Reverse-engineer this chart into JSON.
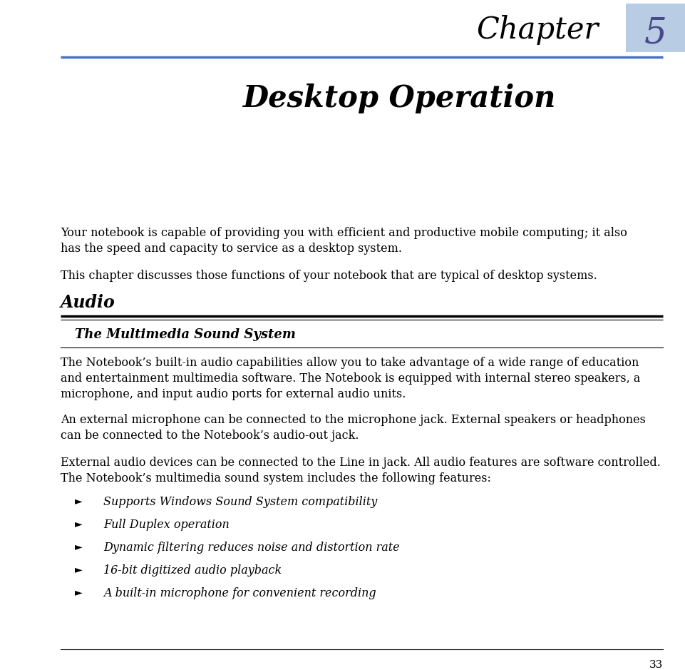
{
  "bg_color": "#ffffff",
  "chapter_text": "Chapter",
  "chapter_num": "5",
  "box_color": "#b8cce4",
  "line_color": "#4472c4",
  "title": "Desktop Operation",
  "page_number": "33",
  "para1_line1": "Your notebook is capable of providing you with efficient and productive mobile computing; it also",
  "para1_line2": "has the speed and capacity to service as a desktop system.",
  "para2": "This chapter discusses those functions of your notebook that are typical of desktop systems.",
  "section_heading": "Audio",
  "subsection_heading": "The Multimedia Sound System",
  "para3_line1": "The Notebook’s built-in audio capabilities allow you to take advantage of a wide range of education",
  "para3_line2": "and entertainment multimedia software. The Notebook is equipped with internal stereo speakers, a",
  "para3_line3": "microphone, and input audio ports for external audio units.",
  "para4_line1": "An external microphone can be connected to the microphone jack. External speakers or headphones",
  "para4_line2": "can be connected to the Notebook’s audio-out jack.",
  "para5_line1": "External audio devices can be connected to the Line in jack. All audio features are software controlled.",
  "para5_line2": "The Notebook’s multimedia sound system includes the following features:",
  "bullets": [
    "Supports Windows Sound System compatibility",
    "Full Duplex operation",
    "Dynamic filtering reduces noise and distortion rate",
    "16-bit digitized audio playback",
    "A built-in microphone for convenient recording"
  ],
  "text_color": "#000000",
  "fig_width": 9.62,
  "fig_height": 9.39,
  "dpi": 100
}
